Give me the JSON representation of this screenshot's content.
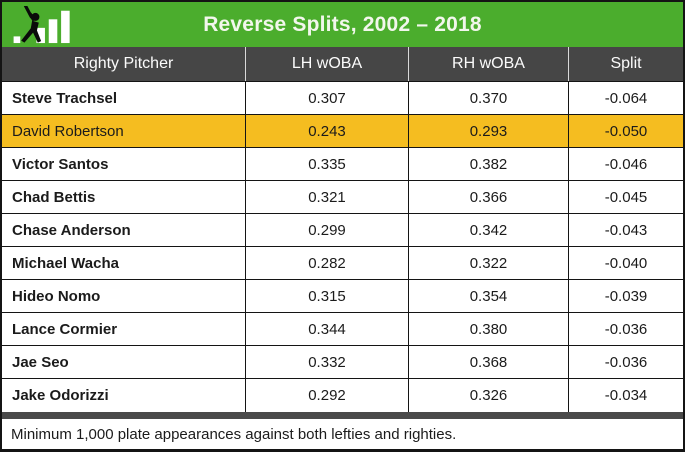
{
  "banner": {
    "title": "Reverse Splits, 2002 – 2018",
    "logo": "batter-bar-chart-logo"
  },
  "table": {
    "columns": [
      "Righty Pitcher",
      "LH wOBA",
      "RH wOBA",
      "Split"
    ],
    "rows": [
      {
        "pitcher": "Steve Trachsel",
        "lh_woba": "0.307",
        "rh_woba": "0.370",
        "split": "-0.064",
        "highlighted": false
      },
      {
        "pitcher": "David Robertson",
        "lh_woba": "0.243",
        "rh_woba": "0.293",
        "split": "-0.050",
        "highlighted": true
      },
      {
        "pitcher": "Victor Santos",
        "lh_woba": "0.335",
        "rh_woba": "0.382",
        "split": "-0.046",
        "highlighted": false
      },
      {
        "pitcher": "Chad Bettis",
        "lh_woba": "0.321",
        "rh_woba": "0.366",
        "split": "-0.045",
        "highlighted": false
      },
      {
        "pitcher": "Chase Anderson",
        "lh_woba": "0.299",
        "rh_woba": "0.342",
        "split": "-0.043",
        "highlighted": false
      },
      {
        "pitcher": "Michael Wacha",
        "lh_woba": "0.282",
        "rh_woba": "0.322",
        "split": "-0.040",
        "highlighted": false
      },
      {
        "pitcher": "Hideo Nomo",
        "lh_woba": "0.315",
        "rh_woba": "0.354",
        "split": "-0.039",
        "highlighted": false
      },
      {
        "pitcher": "Lance Cormier",
        "lh_woba": "0.344",
        "rh_woba": "0.380",
        "split": "-0.036",
        "highlighted": false
      },
      {
        "pitcher": "Jae Seo",
        "lh_woba": "0.332",
        "rh_woba": "0.368",
        "split": "-0.036",
        "highlighted": false
      },
      {
        "pitcher": "Jake Odorizzi",
        "lh_woba": "0.292",
        "rh_woba": "0.326",
        "split": "-0.034",
        "highlighted": false
      }
    ]
  },
  "footer": {
    "note": "Minimum 1,000 plate appearances against both lefties and righties."
  },
  "colors": {
    "banner_green": "#4BAD2D",
    "header_gray": "#464646",
    "highlight_gold": "#F5BD20",
    "border_black": "#141414"
  },
  "chart_data": {
    "type": "table",
    "title": "Reverse Splits, 2002 – 2018",
    "columns": [
      "Righty Pitcher",
      "LH wOBA",
      "RH wOBA",
      "Split"
    ],
    "rows": [
      [
        "Steve Trachsel",
        "0.307",
        "0.370",
        "-0.064"
      ],
      [
        "David Robertson",
        "0.243",
        "0.293",
        "-0.050"
      ],
      [
        "Victor Santos",
        "0.335",
        "0.382",
        "-0.046"
      ],
      [
        "Chad Bettis",
        "0.321",
        "0.366",
        "-0.045"
      ],
      [
        "Chase Anderson",
        "0.299",
        "0.342",
        "-0.043"
      ],
      [
        "Michael Wacha",
        "0.282",
        "0.322",
        "-0.040"
      ],
      [
        "Hideo Nomo",
        "0.315",
        "0.354",
        "-0.039"
      ],
      [
        "Lance Cormier",
        "0.344",
        "0.380",
        "-0.036"
      ],
      [
        "Jae Seo",
        "0.332",
        "0.368",
        "-0.036"
      ],
      [
        "Jake Odorizzi",
        "0.292",
        "0.326",
        "-0.034"
      ]
    ],
    "highlighted_row": "David Robertson",
    "footnote": "Minimum 1,000 plate appearances against both lefties and righties."
  }
}
